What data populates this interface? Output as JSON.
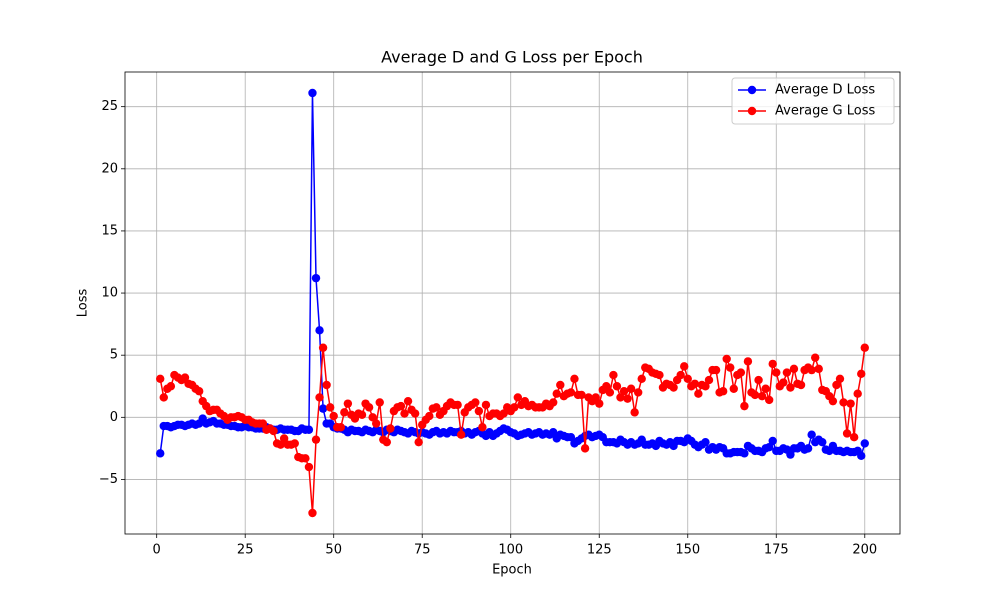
{
  "chart_data": {
    "type": "line",
    "title": "Average D and G Loss per Epoch",
    "x_label": "Epoch",
    "y_label": "Loss",
    "x": [
      1,
      2,
      3,
      4,
      5,
      6,
      7,
      8,
      9,
      10,
      11,
      12,
      13,
      14,
      15,
      16,
      17,
      18,
      19,
      20,
      21,
      22,
      23,
      24,
      25,
      26,
      27,
      28,
      29,
      30,
      31,
      32,
      33,
      34,
      35,
      36,
      37,
      38,
      39,
      40,
      41,
      42,
      43,
      44,
      45,
      46,
      47,
      48,
      49,
      50,
      51,
      52,
      53,
      54,
      55,
      56,
      57,
      58,
      59,
      60,
      61,
      62,
      63,
      64,
      65,
      66,
      67,
      68,
      69,
      70,
      71,
      72,
      73,
      74,
      75,
      76,
      77,
      78,
      79,
      80,
      81,
      82,
      83,
      84,
      85,
      86,
      87,
      88,
      89,
      90,
      91,
      92,
      93,
      94,
      95,
      96,
      97,
      98,
      99,
      100,
      101,
      102,
      103,
      104,
      105,
      106,
      107,
      108,
      109,
      110,
      111,
      112,
      113,
      114,
      115,
      116,
      117,
      118,
      119,
      120,
      121,
      122,
      123,
      124,
      125,
      126,
      127,
      128,
      129,
      130,
      131,
      132,
      133,
      134,
      135,
      136,
      137,
      138,
      139,
      140,
      141,
      142,
      143,
      144,
      145,
      146,
      147,
      148,
      149,
      150,
      151,
      152,
      153,
      154,
      155,
      156,
      157,
      158,
      159,
      160,
      161,
      162,
      163,
      164,
      165,
      166,
      167,
      168,
      169,
      170,
      171,
      172,
      173,
      174,
      175,
      176,
      177,
      178,
      179,
      180,
      181,
      182,
      183,
      184,
      185,
      186,
      187,
      188,
      189,
      190,
      191,
      192,
      193,
      194,
      195,
      196,
      197,
      198,
      199,
      200
    ],
    "series": [
      {
        "name": "Average D Loss",
        "color": "#0000ff",
        "values": [
          -2.9,
          -0.7,
          -0.7,
          -0.8,
          -0.7,
          -0.6,
          -0.6,
          -0.7,
          -0.6,
          -0.5,
          -0.6,
          -0.5,
          -0.1,
          -0.5,
          -0.4,
          -0.3,
          -0.5,
          -0.5,
          -0.6,
          -0.6,
          -0.7,
          -0.7,
          -0.8,
          -0.8,
          -0.7,
          -0.8,
          -0.8,
          -0.9,
          -0.9,
          -0.9,
          -0.8,
          -0.9,
          -1.0,
          -1.0,
          -0.9,
          -1.0,
          -1.0,
          -1.0,
          -1.1,
          -1.1,
          -0.9,
          -1.0,
          -1.0,
          26.1,
          11.2,
          7.0,
          0.7,
          -0.5,
          -0.5,
          -0.8,
          -0.9,
          -0.9,
          -1.0,
          -1.2,
          -1.0,
          -1.1,
          -1.1,
          -1.2,
          -1.0,
          -1.1,
          -1.2,
          -1.0,
          -1.1,
          -1.2,
          -1.0,
          -1.1,
          -1.2,
          -1.0,
          -1.1,
          -1.2,
          -1.3,
          -1.1,
          -1.2,
          -1.3,
          -1.2,
          -1.3,
          -1.4,
          -1.2,
          -1.1,
          -1.3,
          -1.2,
          -1.3,
          -1.1,
          -1.2,
          -1.2,
          -1.1,
          -1.3,
          -1.2,
          -1.4,
          -1.2,
          -1.1,
          -1.3,
          -1.5,
          -1.2,
          -1.5,
          -1.3,
          -1.1,
          -0.9,
          -1.0,
          -1.2,
          -1.3,
          -1.5,
          -1.4,
          -1.3,
          -1.2,
          -1.4,
          -1.3,
          -1.2,
          -1.4,
          -1.3,
          -1.4,
          -1.2,
          -1.7,
          -1.4,
          -1.5,
          -1.6,
          -1.6,
          -2.1,
          -1.9,
          -1.7,
          -1.5,
          -1.4,
          -1.6,
          -1.5,
          -1.4,
          -1.6,
          -2.0,
          -2.0,
          -2.0,
          -2.1,
          -1.8,
          -2.0,
          -2.2,
          -2.0,
          -2.2,
          -2.1,
          -1.8,
          -2.2,
          -2.2,
          -2.1,
          -2.3,
          -1.9,
          -2.1,
          -2.2,
          -2.0,
          -2.3,
          -1.9,
          -1.9,
          -2.0,
          -1.7,
          -1.9,
          -2.2,
          -2.4,
          -2.2,
          -2.0,
          -2.6,
          -2.4,
          -2.6,
          -2.4,
          -2.5,
          -2.9,
          -2.9,
          -2.8,
          -2.8,
          -2.8,
          -2.9,
          -2.3,
          -2.5,
          -2.7,
          -2.7,
          -2.8,
          -2.5,
          -2.4,
          -1.9,
          -2.7,
          -2.7,
          -2.5,
          -2.6,
          -3.0,
          -2.5,
          -2.5,
          -2.3,
          -2.6,
          -2.5,
          -1.4,
          -2.0,
          -1.8,
          -2.0,
          -2.6,
          -2.7,
          -2.3,
          -2.7,
          -2.7,
          -2.8,
          -2.7,
          -2.8,
          -2.8,
          -2.7,
          -3.1,
          -2.1
        ]
      },
      {
        "name": "Average G Loss",
        "color": "#ff0000",
        "values": [
          3.1,
          1.6,
          2.3,
          2.5,
          3.4,
          3.2,
          3.0,
          3.2,
          2.7,
          2.6,
          2.3,
          2.1,
          1.3,
          0.9,
          0.5,
          0.6,
          0.6,
          0.3,
          0.1,
          -0.2,
          0.0,
          0.0,
          0.1,
          0.0,
          -0.2,
          -0.2,
          -0.4,
          -0.5,
          -0.5,
          -0.5,
          -1.0,
          -0.9,
          -1.1,
          -2.1,
          -2.2,
          -1.7,
          -2.2,
          -2.2,
          -2.1,
          -3.2,
          -3.3,
          -3.3,
          -4.0,
          -7.7,
          -1.8,
          1.6,
          5.6,
          2.6,
          0.8,
          0.1,
          -0.8,
          -0.8,
          0.4,
          1.1,
          0.2,
          -0.1,
          0.3,
          0.2,
          1.1,
          0.8,
          0.0,
          -0.5,
          1.2,
          -1.8,
          -2.0,
          -0.9,
          0.5,
          0.8,
          0.9,
          0.3,
          1.3,
          0.6,
          0.3,
          -2.0,
          -0.6,
          -0.2,
          0.1,
          0.7,
          0.8,
          0.2,
          0.5,
          0.9,
          1.2,
          1.0,
          1.0,
          -1.4,
          0.4,
          0.8,
          1.0,
          1.2,
          0.5,
          -0.8,
          1.0,
          0.1,
          0.3,
          0.3,
          0.1,
          0.3,
          0.8,
          0.5,
          0.8,
          1.6,
          1.0,
          1.3,
          0.9,
          1.0,
          0.8,
          0.8,
          0.8,
          1.1,
          0.9,
          1.2,
          1.9,
          2.6,
          1.7,
          1.9,
          2.0,
          3.1,
          1.8,
          1.8,
          -2.5,
          1.6,
          1.3,
          1.6,
          1.1,
          2.2,
          2.5,
          2.0,
          3.4,
          2.5,
          1.6,
          2.1,
          1.5,
          2.3,
          0.4,
          2.0,
          3.1,
          4.0,
          3.9,
          3.6,
          3.5,
          3.4,
          2.4,
          2.7,
          2.6,
          2.4,
          3.0,
          3.4,
          4.1,
          3.1,
          2.5,
          2.7,
          1.9,
          2.6,
          2.5,
          3.0,
          3.8,
          3.8,
          2.0,
          2.1,
          4.7,
          4.0,
          2.3,
          3.4,
          3.6,
          0.9,
          4.5,
          2.0,
          1.8,
          3.0,
          1.7,
          2.3,
          1.4,
          4.3,
          3.6,
          2.5,
          2.8,
          3.6,
          2.4,
          3.9,
          2.7,
          2.6,
          3.8,
          4.0,
          3.8,
          4.8,
          3.9,
          2.2,
          2.1,
          1.7,
          1.3,
          2.6,
          3.1,
          1.2,
          -1.3,
          1.1,
          -1.6,
          1.9,
          3.5,
          5.6
        ]
      }
    ],
    "xlim": [
      -8.95,
      209.95
    ],
    "ylim": [
      -9.39,
      27.79
    ],
    "xticks": [
      0,
      25,
      50,
      75,
      100,
      125,
      150,
      175,
      200
    ],
    "yticks": [
      {
        "value": -5,
        "label": "−5"
      },
      0,
      5,
      10,
      15,
      20,
      25
    ],
    "grid": true,
    "legend": "upper right"
  }
}
